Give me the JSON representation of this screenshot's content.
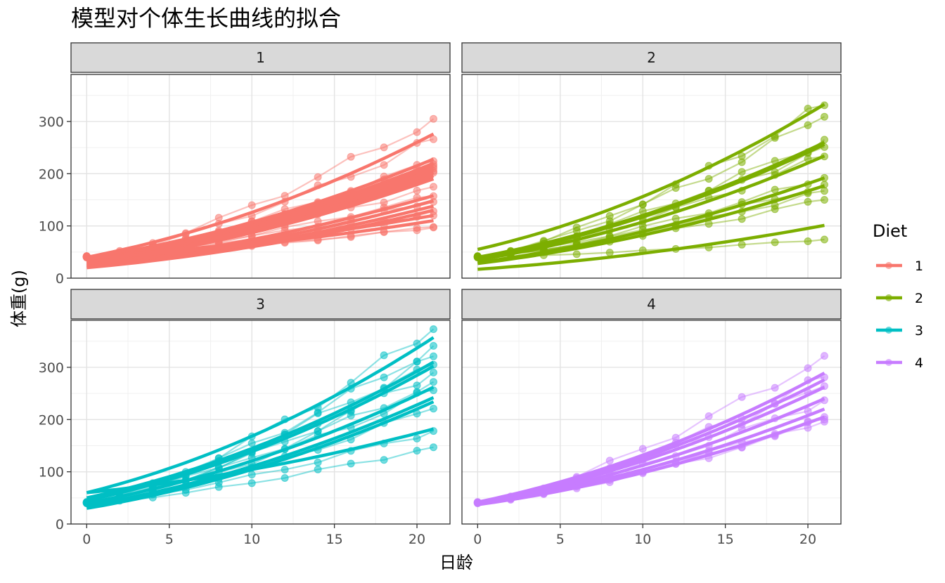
{
  "chart_data": {
    "type": "line",
    "title": "模型对个体生长曲线的拟合",
    "xlabel": "日龄",
    "ylabel": "体重(g)",
    "xlim": [
      -0.95,
      22.0
    ],
    "ylim": [
      0,
      390
    ],
    "x_ticks": [
      "0",
      "5",
      "10",
      "15",
      "20"
    ],
    "y_ticks": [
      "0",
      "100",
      "200",
      "300"
    ],
    "x_tick_values": [
      0,
      5,
      10,
      15,
      20
    ],
    "y_tick_values": [
      0,
      100,
      200,
      300
    ],
    "grid": true,
    "facet_layout": "2x2",
    "legend": {
      "title": "Diet",
      "position": "right",
      "entries": [
        "1",
        "2",
        "3",
        "4"
      ]
    },
    "colors": {
      "1": "#F8766D",
      "2": "#7CAE00",
      "3": "#00BFC4",
      "4": "#C77CFF"
    },
    "facets": [
      {
        "label": "1",
        "color": "#F8766D",
        "observed_endpoints_day21": [
          305,
          266,
          224,
          218,
          214,
          210,
          205,
          202,
          175,
          157,
          146,
          128,
          120,
          98,
          97
        ],
        "fitted_endpoints_day21": [
          276,
          228,
          220,
          214,
          208,
          202,
          196,
          190,
          158,
          148,
          138,
          130,
          120,
          110
        ],
        "fitted_start_day0": [
          40,
          38,
          36,
          35,
          34,
          32,
          30,
          28,
          26,
          24,
          22,
          20
        ]
      },
      {
        "label": "2",
        "color": "#7CAE00",
        "observed_endpoints_day21": [
          331,
          309,
          265,
          251,
          233,
          192,
          179,
          167,
          150,
          74
        ],
        "fitted_endpoints_day21": [
          333,
          260,
          256,
          234,
          192,
          177,
          101
        ],
        "fitted_start_day0": [
          55,
          40,
          38,
          35,
          30,
          28,
          17
        ]
      },
      {
        "label": "3",
        "color": "#00BFC4",
        "observed_endpoints_day21": [
          373,
          341,
          321,
          305,
          290,
          272,
          256,
          221,
          178,
          147
        ],
        "fitted_endpoints_day21": [
          357,
          310,
          302,
          262,
          242,
          234,
          182
        ],
        "fitted_start_day0": [
          60,
          50,
          45,
          40,
          35,
          30
        ]
      },
      {
        "label": "4",
        "color": "#C77CFF",
        "observed_endpoints_day21": [
          322,
          281,
          264,
          237,
          205,
          200,
          196
        ],
        "fitted_endpoints_day21": [
          289,
          276,
          262,
          240,
          220,
          205
        ],
        "fitted_start_day0": [
          42,
          41,
          40,
          39,
          38,
          37
        ]
      }
    ]
  }
}
